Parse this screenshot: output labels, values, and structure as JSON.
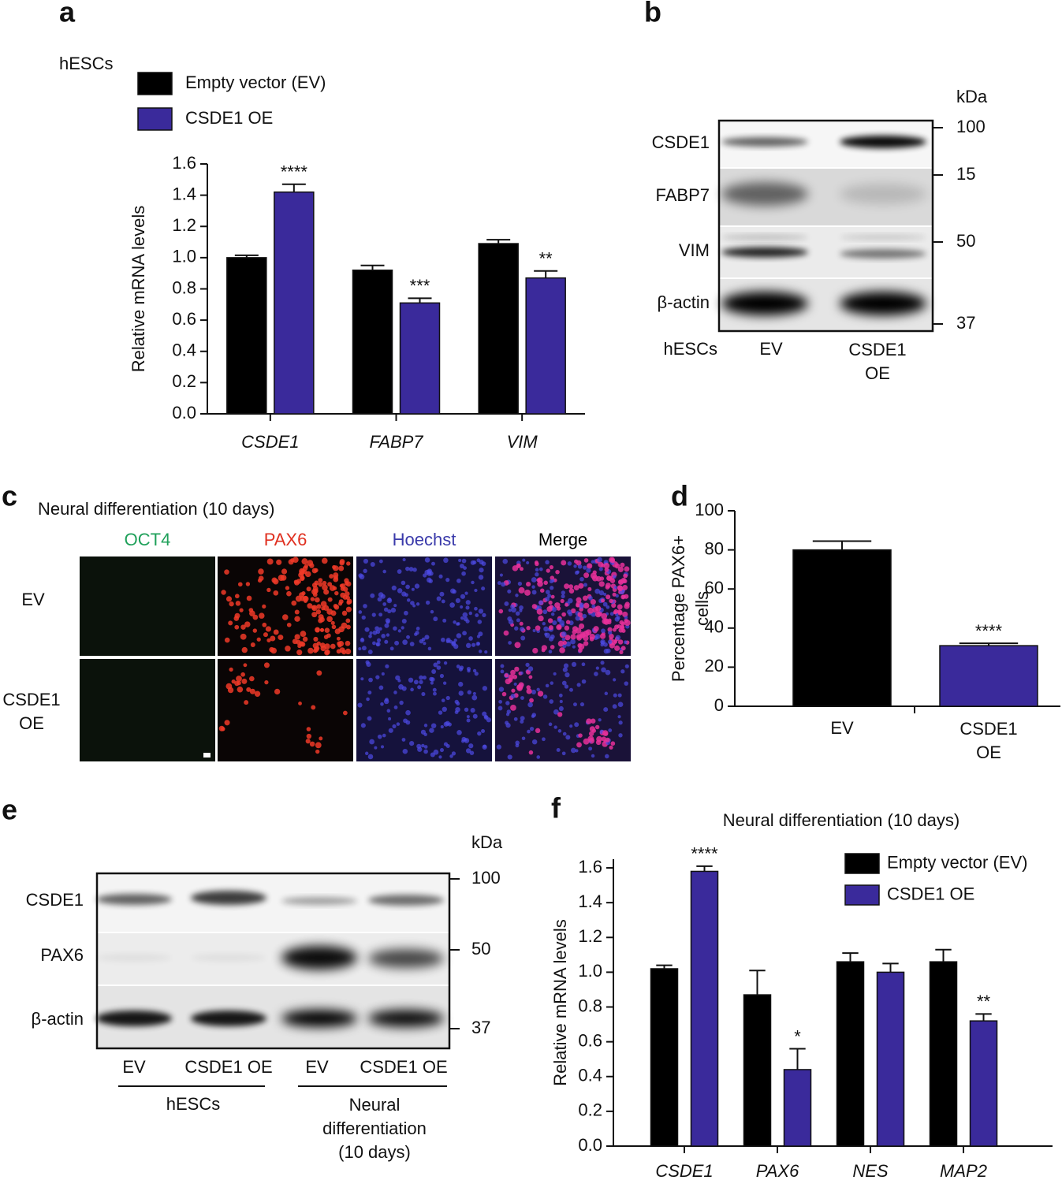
{
  "figure": {
    "panel_labels": [
      "a",
      "b",
      "c",
      "d",
      "e",
      "f"
    ]
  },
  "chart_data": [
    {
      "type": "bar",
      "annotation": "hESCs",
      "ylabel": "Relative mRNA levels",
      "categories": [
        "CSDE1",
        "FABP7",
        "VIM"
      ],
      "series": [
        {
          "name": "Empty vector (EV)",
          "color": "#000000",
          "values": [
            1.0,
            0.92,
            1.09
          ],
          "errors": [
            0.015,
            0.03,
            0.025
          ]
        },
        {
          "name": "CSDE1 OE",
          "color": "#3a2a9b",
          "values": [
            1.42,
            0.71,
            0.87
          ],
          "errors": [
            0.05,
            0.03,
            0.045
          ],
          "significance": [
            "****",
            "***",
            "**"
          ]
        }
      ],
      "ylim": [
        0,
        1.6
      ],
      "yticks": [
        {
          "value": 0,
          "label": "0.0"
        },
        0.2,
        0.4,
        0.6,
        0.8,
        {
          "value": 1,
          "label": "1.0"
        },
        1.2,
        1.4,
        1.6
      ]
    },
    {
      "type": "bar",
      "ylabel": "Percentage PAX6+\ncells",
      "categories": [
        "EV",
        "CSDE1\nOE"
      ],
      "values": [
        80,
        31
      ],
      "errors": [
        4.5,
        1.2
      ],
      "colors": [
        "#000000",
        "#3a2a9b"
      ],
      "significance": [
        null,
        "****"
      ],
      "ylim": [
        0,
        100
      ],
      "yticks": [
        0,
        20,
        40,
        60,
        80,
        100
      ]
    },
    {
      "type": "bar",
      "title": "Neural  differentiation (10 days)",
      "ylabel": "Relative mRNA levels",
      "categories": [
        "CSDE1",
        "PAX6",
        "NES",
        "MAP2"
      ],
      "series": [
        {
          "name": "Empty vector (EV)",
          "color": "#000000",
          "values": [
            1.02,
            0.87,
            1.06,
            1.06
          ],
          "errors": [
            0.02,
            0.14,
            0.05,
            0.07
          ]
        },
        {
          "name": "CSDE1 OE",
          "color": "#3a2a9b",
          "values": [
            1.58,
            0.44,
            1.0,
            0.72
          ],
          "errors": [
            0.03,
            0.12,
            0.05,
            0.04
          ],
          "significance": [
            "****",
            "*",
            null,
            "**"
          ]
        }
      ],
      "ylim": [
        0,
        1.65
      ],
      "yticks": [
        {
          "value": 0,
          "label": "0.0"
        },
        0.2,
        0.4,
        0.6,
        0.8,
        {
          "value": 1,
          "label": "1.0"
        },
        1.2,
        1.4,
        1.6
      ]
    }
  ],
  "blot_b": {
    "unit": "kDa",
    "rows": [
      "CSDE1",
      "FABP7",
      "VIM",
      "β-actin"
    ],
    "markers": [
      "100",
      "15",
      "50",
      "37"
    ],
    "lanes_label": "hESCs",
    "lanes": [
      "EV",
      "CSDE1\nOE"
    ]
  },
  "images_c": {
    "title": "Neural  differentiation (10 days)",
    "columns": [
      {
        "label": "OCT4",
        "color": "#1fa05a"
      },
      {
        "label": "PAX6",
        "color": "#e03020"
      },
      {
        "label": "Hoechst",
        "color": "#3a3aaa"
      },
      {
        "label": "Merge",
        "color": "#000000"
      }
    ],
    "rows": [
      "EV",
      "CSDE1\nOE"
    ]
  },
  "blot_e": {
    "unit": "kDa",
    "rows": [
      "CSDE1",
      "PAX6",
      "β-actin"
    ],
    "markers": [
      "100",
      "50",
      "37"
    ],
    "lanes": [
      "EV",
      "CSDE1 OE",
      "EV",
      "CSDE1 OE"
    ],
    "groups": [
      "hESCs",
      "Neural\ndifferentiation\n(10 days)"
    ]
  }
}
